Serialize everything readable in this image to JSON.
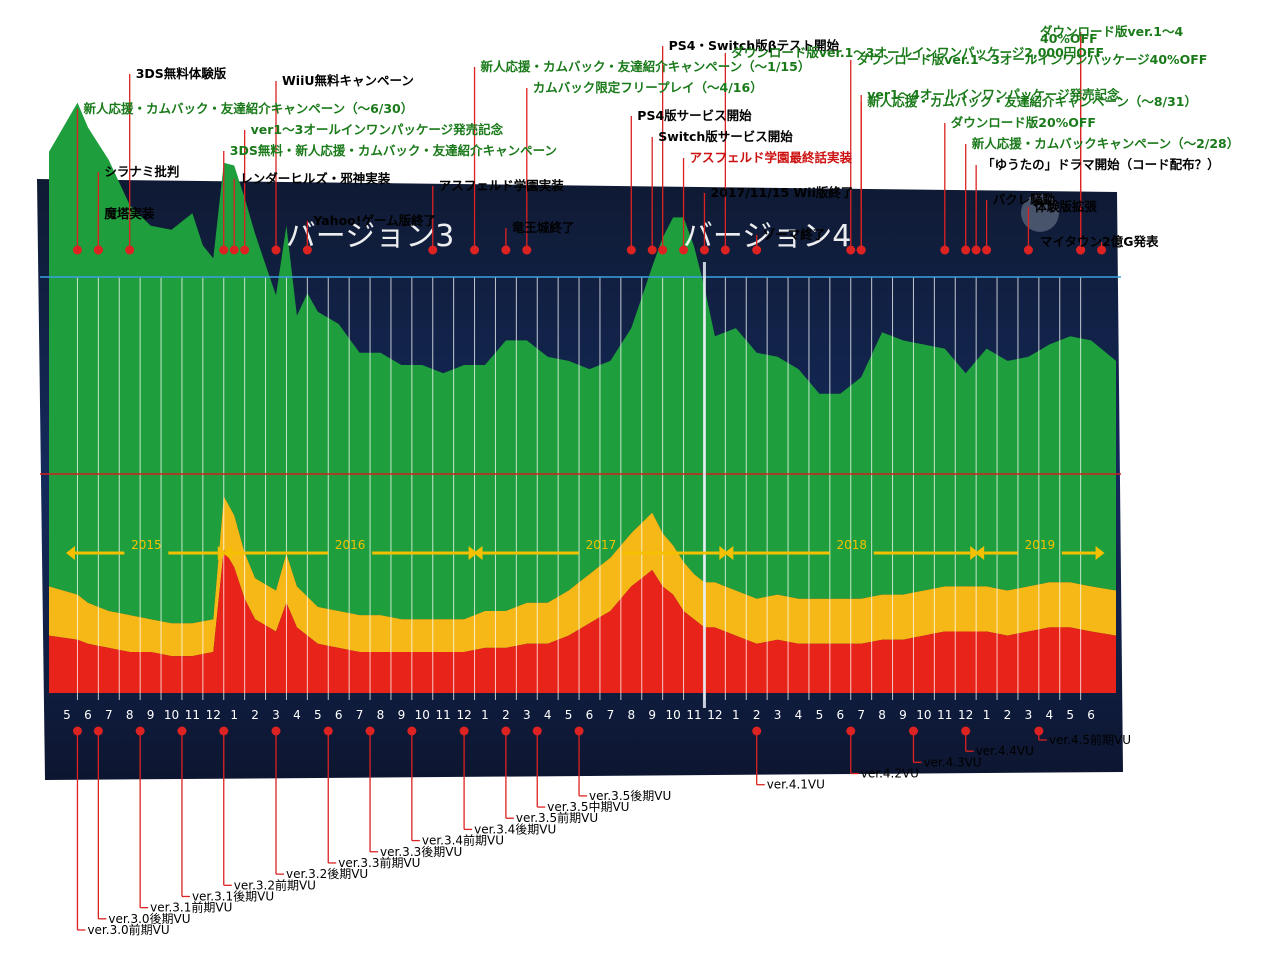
{
  "chart_data": {
    "type": "area",
    "stacked": true,
    "month_labels": [
      "5",
      "6",
      "7",
      "8",
      "9",
      "10",
      "11",
      "12",
      "1",
      "2",
      "3",
      "4",
      "5",
      "6",
      "7",
      "8",
      "9",
      "10",
      "11",
      "12",
      "1",
      "2",
      "3",
      "4",
      "5",
      "6",
      "7",
      "8",
      "9",
      "10",
      "11",
      "12",
      "1",
      "2",
      "3",
      "4",
      "5",
      "6",
      "7",
      "8",
      "9",
      "10",
      "11",
      "12",
      "1",
      "2",
      "3",
      "4",
      "5",
      "6"
    ],
    "years": [
      {
        "label": "2015",
        "from": 0,
        "to": 7.5
      },
      {
        "label": "2016",
        "from": 7.5,
        "to": 19.5
      },
      {
        "label": "2017",
        "from": 19.5,
        "to": 31.5
      },
      {
        "label": "2018",
        "from": 31.5,
        "to": 43.5
      },
      {
        "label": "2019",
        "from": 43.5,
        "to": 49.5
      }
    ],
    "versions": [
      {
        "label": "バージョン3",
        "at": 14.5
      },
      {
        "label": "バージョン4",
        "at": 33.5
      }
    ],
    "wii_end_marker": 30.5,
    "series": [
      {
        "name": "red",
        "color": "#e8231a",
        "x": [
          0,
          1,
          2,
          3,
          4,
          5,
          6,
          7,
          7.6,
          8.2,
          9,
          10,
          10.5,
          11,
          12,
          13,
          14,
          15,
          16,
          17,
          18,
          19,
          20,
          21,
          22,
          23,
          24,
          25,
          26,
          27,
          28,
          28.5,
          29,
          29.5,
          30,
          30.5,
          31,
          32,
          33,
          34,
          35,
          36,
          37,
          38,
          39,
          40,
          41,
          42,
          43,
          44,
          45,
          46,
          47,
          48,
          49,
          49.5
        ],
        "values": [
          7,
          6,
          5.5,
          5,
          5,
          4.5,
          4.5,
          5,
          20,
          13,
          9,
          7.5,
          11,
          8,
          6,
          5.5,
          5,
          5,
          5,
          5,
          5,
          5,
          5.5,
          5.5,
          6,
          6,
          7,
          8.5,
          10,
          13,
          15,
          13,
          12,
          10,
          9,
          8,
          8,
          7,
          6,
          6.5,
          6,
          6,
          6,
          6,
          6.5,
          6.5,
          7,
          7.5,
          7.5,
          7.5,
          7,
          7.5,
          8,
          8,
          7.5,
          7
        ]
      },
      {
        "name": "orange",
        "color": "#f5b817",
        "x": [
          0,
          1,
          2,
          3,
          4,
          5,
          6,
          7,
          7.6,
          8.2,
          9,
          10,
          10.5,
          11,
          12,
          13,
          14,
          15,
          16,
          17,
          18,
          19,
          20,
          21,
          22,
          23,
          24,
          25,
          26,
          27,
          28,
          28.5,
          29,
          29.5,
          30,
          30.5,
          31,
          32,
          33,
          34,
          35,
          36,
          37,
          38,
          39,
          40,
          41,
          42,
          43,
          44,
          45,
          46,
          47,
          48,
          49,
          49.5
        ],
        "values": [
          6,
          5,
          4.5,
          4.5,
          4,
          4,
          4,
          4,
          7,
          6,
          5,
          5,
          6,
          5,
          4.5,
          4.5,
          4.5,
          4.5,
          4,
          4,
          4,
          4,
          4.5,
          4.5,
          5,
          5,
          5.5,
          6,
          6.5,
          6.5,
          7,
          6.5,
          6,
          6,
          5.5,
          5.5,
          5.5,
          5.5,
          5.5,
          5.5,
          5.5,
          5.5,
          5.5,
          5.5,
          5.5,
          5.5,
          5.5,
          5.5,
          5.5,
          5.5,
          5.5,
          5.5,
          5.5,
          5.5,
          5.5,
          5.5
        ]
      },
      {
        "name": "green",
        "color": "#1e9e3c",
        "x": [
          0,
          0.5,
          1,
          2,
          3,
          4,
          5,
          6,
          6.6,
          7,
          7.6,
          8.2,
          9,
          10,
          10.5,
          11,
          11.5,
          12,
          13,
          14,
          15,
          16,
          17,
          18,
          19,
          20,
          21,
          22,
          23,
          24,
          25,
          26,
          27,
          28,
          28.5,
          29,
          29.5,
          30,
          30.5,
          31,
          32,
          33,
          34,
          35,
          36,
          37,
          38,
          39,
          40,
          41,
          42,
          43,
          44,
          45,
          46,
          47,
          48,
          49,
          49.5
        ],
        "values": [
          53,
          60,
          58,
          55,
          50,
          48,
          48,
          50,
          45,
          44,
          40,
          44,
          42,
          36,
          40,
          33,
          37,
          36,
          35,
          32,
          32,
          31,
          31,
          30,
          31,
          30,
          33,
          32,
          30,
          28,
          25,
          24,
          25,
          30,
          36,
          40,
          42,
          40,
          36,
          30,
          32,
          30,
          29,
          28,
          25,
          25,
          27,
          32,
          31,
          30,
          29,
          26,
          29,
          28,
          28,
          29,
          30,
          30,
          28
        ]
      }
    ],
    "top_annotations": [
      {
        "text": "ダウンロード版ver.1～4",
        "color": "#1a7a1a",
        "at": 48.5
      },
      {
        "text": "40%OFF",
        "color": "#1a7a1a",
        "at": 48.5
      },
      {
        "text": "PS4・Switch版βテスト開始",
        "color": "#000000",
        "at": 28.5
      },
      {
        "text": "ダウンロード版ver.1～3オールインワンパッケージ2,000円OFF",
        "color": "#1a7a1a",
        "at": 31.5
      },
      {
        "text": "ダウンロード版ver.1～3オールインワンパッケージ40%OFF",
        "color": "#1a7a1a",
        "at": 37.5
      },
      {
        "text": "新人応援・カムバック・友達紹介キャンペーン（～1/15）",
        "color": "#1a7a1a",
        "at": 19.5
      },
      {
        "text": "3DS無料体験版",
        "color": "#000000",
        "at": 3
      },
      {
        "text": "WiiU無料キャンペーン",
        "color": "#000000",
        "at": 10
      },
      {
        "text": "カムバック限定フリープレイ（～4/16）",
        "color": "#1a7a1a",
        "at": 22
      },
      {
        "text": "ver1～4オールインワンパッケージ発売記念",
        "color": "#1a7a1a",
        "at": 38
      },
      {
        "text": "新人応援・カムバック・友達紹介キャンペーン（～8/31）",
        "color": "#1a7a1a",
        "at": 38
      },
      {
        "text": "新人応援・カムバック・友達紹介キャンペーン（～6/30）",
        "color": "#1a7a1a",
        "at": 0.5
      },
      {
        "text": "PS4版サービス開始",
        "color": "#000000",
        "at": 27
      },
      {
        "text": "ダウンロード版20%OFF",
        "color": "#1a7a1a",
        "at": 42
      },
      {
        "text": "ver1～3オールインワンパッケージ発売記念",
        "color": "#1a7a1a",
        "at": 8.5
      },
      {
        "text": "Switch版サービス開始",
        "color": "#000000",
        "at": 28
      },
      {
        "text": "新人応援・カムバックキャンペーン（～2/28）",
        "color": "#1a7a1a",
        "at": 43
      },
      {
        "text": "3DS無料・新人応援・カムバック・友達紹介キャンペーン",
        "color": "#1a7a1a",
        "at": 7.5
      },
      {
        "text": "アスフェルド学園最終話実装",
        "color": "#cc1111",
        "at": 29.5
      },
      {
        "text": "「ゆうたの」ドラマ開始（コード配布？）",
        "color": "#000000",
        "at": 43.5
      },
      {
        "text": "シラナミ批判",
        "color": "#000000",
        "at": 1.5
      },
      {
        "text": "レンダーヒルズ・邪神実装",
        "color": "#000000",
        "at": 8
      },
      {
        "text": "アスフェルド学園実装",
        "color": "#000000",
        "at": 17.5
      },
      {
        "text": "2017/11/15 Wii版終了",
        "color": "#000000",
        "at": 30.5
      },
      {
        "text": "パクレ騒動",
        "color": "#000000",
        "at": 44
      },
      {
        "text": "体験版拡張",
        "color": "#000000",
        "at": 46
      },
      {
        "text": "魔塔実装",
        "color": "#000000",
        "at": 1.5
      },
      {
        "text": "Yahoo!ゲーム版終了",
        "color": "#000000",
        "at": 11.5
      },
      {
        "text": "竜王城終了",
        "color": "#000000",
        "at": 21
      },
      {
        "text": "ゾーマ終了",
        "color": "#000000",
        "at": 33
      },
      {
        "text": "マイタウン2億G発表",
        "color": "#000000",
        "at": 49.5
      }
    ],
    "bottom_annotations": [
      {
        "text": "ver.3.0前期VU",
        "at": 0.5
      },
      {
        "text": "ver.3.0後期VU",
        "at": 1.5
      },
      {
        "text": "ver.3.1前期VU",
        "at": 3.5
      },
      {
        "text": "ver.3.1後期VU",
        "at": 5.5
      },
      {
        "text": "ver.3.2前期VU",
        "at": 7.5
      },
      {
        "text": "ver.3.2後期VU",
        "at": 10
      },
      {
        "text": "ver.3.3前期VU",
        "at": 12.5
      },
      {
        "text": "ver.3.3後期VU",
        "at": 14.5
      },
      {
        "text": "ver.3.4前期VU",
        "at": 16.5
      },
      {
        "text": "ver.3.4後期VU",
        "at": 19
      },
      {
        "text": "ver.3.5前期VU",
        "at": 21
      },
      {
        "text": "ver.3.5中期VU",
        "at": 22.5
      },
      {
        "text": "ver.3.5後期VU",
        "at": 24.5
      },
      {
        "text": "ver.4.1VU",
        "at": 33
      },
      {
        "text": "ver.4.2VU",
        "at": 37.5
      },
      {
        "text": "ver.4.3VU",
        "at": 40.5
      },
      {
        "text": "ver.4.4VU",
        "at": 43
      },
      {
        "text": "ver.4.5前期VU",
        "at": 46.5
      }
    ]
  }
}
